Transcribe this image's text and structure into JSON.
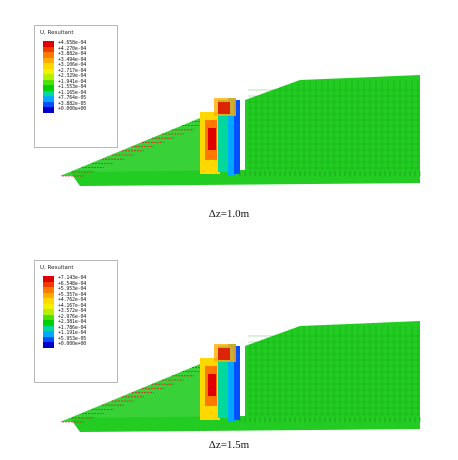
{
  "figures": [
    {
      "legend_title": "U, Resultant",
      "legend_values": [
        "+4.658e-04",
        "+4.270e-04",
        "+3.882e-04",
        "+3.494e-04",
        "+3.106e-04",
        "+2.717e-04",
        "+2.329e-04",
        "+1.941e-04",
        "+1.553e-04",
        "+1.165e-04",
        "+7.764e-05",
        "+3.882e-05",
        "+0.000e+00"
      ],
      "caption": "Δz=1.0m"
    },
    {
      "legend_title": "U, Resultant",
      "legend_values": [
        "+7.143e-04",
        "+6.548e-04",
        "+5.953e-04",
        "+5.357e-04",
        "+4.762e-04",
        "+4.167e-04",
        "+3.572e-04",
        "+2.976e-04",
        "+2.381e-04",
        "+1.786e-04",
        "+1.191e-04",
        "+5.953e-05",
        "+0.000e+00"
      ],
      "caption": "Δz=1.5m"
    }
  ],
  "legend_colors": [
    "#e00000",
    "#f03c00",
    "#ff7800",
    "#ffae00",
    "#ffd800",
    "#f5f000",
    "#b4f000",
    "#4ee000",
    "#00d000",
    "#00d89c",
    "#00a8ff",
    "#0050ff",
    "#0000c8"
  ],
  "mesh_color": "#22cc22",
  "arrow_color": "#e02020"
}
